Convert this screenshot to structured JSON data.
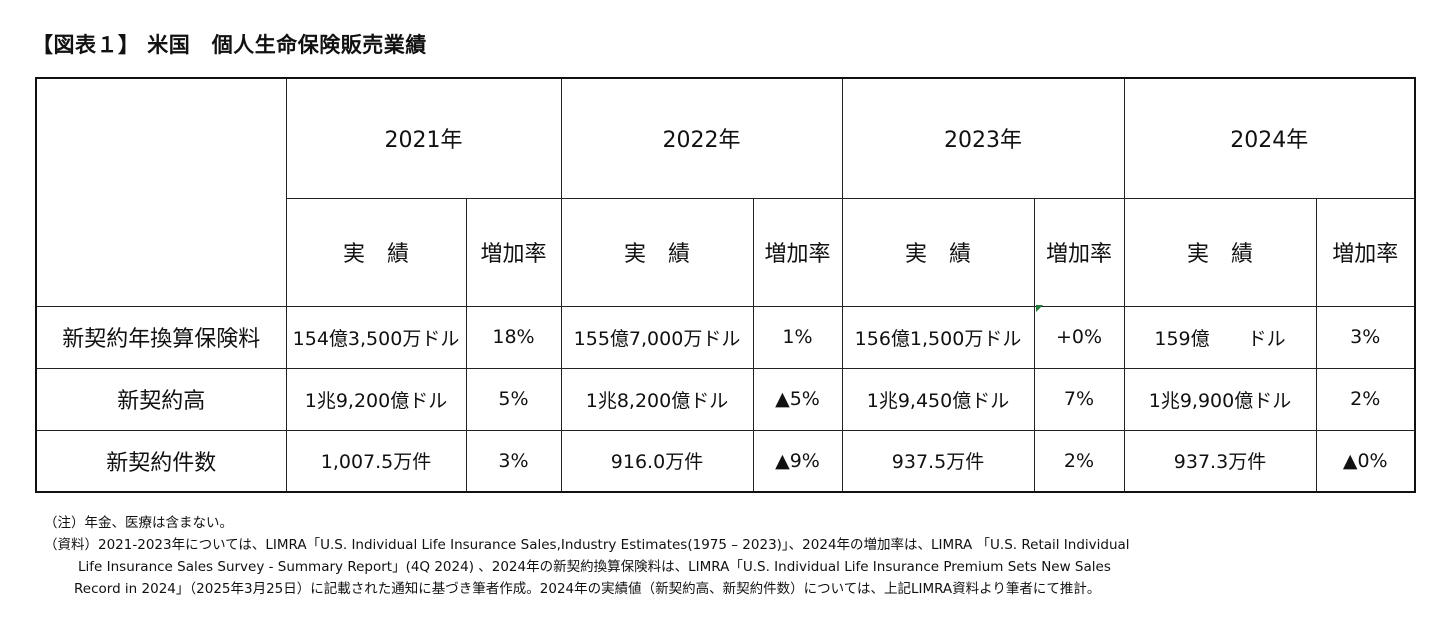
{
  "title": "【図表１】 米国　個人生命保険販売業績",
  "table": {
    "years": [
      "2021年",
      "2022年",
      "2023年",
      "2024年"
    ],
    "sub_actual": "実　績",
    "sub_rate": "増加率",
    "rows": [
      {
        "label": "新契約年換算保険料",
        "cells": [
          "154億3,500万ドル",
          "18%",
          "155億7,000万ドル",
          "1%",
          "156億1,500万ドル",
          "+0%",
          "159億　　ドル",
          "3%"
        ]
      },
      {
        "label": "新契約高",
        "cells": [
          "1兆9,200億ドル",
          "5%",
          "1兆8,200億ドル",
          "▲5%",
          "1兆9,450億ドル",
          "7%",
          "1兆9,900億ドル",
          "2%"
        ]
      },
      {
        "label": "新契約件数",
        "cells": [
          "1,007.5万件",
          "3%",
          "916.0万件",
          "▲9%",
          "937.5万件",
          "2%",
          "937.3万件",
          "▲0%"
        ]
      }
    ]
  },
  "notes": {
    "note1": "（注）年金、医療は含まない。",
    "source_line1": "（資料）2021-2023年については、LIMRA「U.S. Individual Life Insurance Sales,Industry Estimates(1975 – 2023)」、2024年の増加率は、LIMRA 「U.S. Retail Individual",
    "source_line2": "Life Insurance Sales Survey - Summary Report」(4Q 2024) 、2024年の新契約換算保険料は、LIMRA「U.S. Individual Life Insurance Premium Sets New Sales",
    "source_line3": "Record in 2024」（2025年3月25日）に記載された通知に基づき筆者作成。2024年の実績値（新契約高、新契約件数）については、上記LIMRA資料より筆者にて推計。"
  }
}
